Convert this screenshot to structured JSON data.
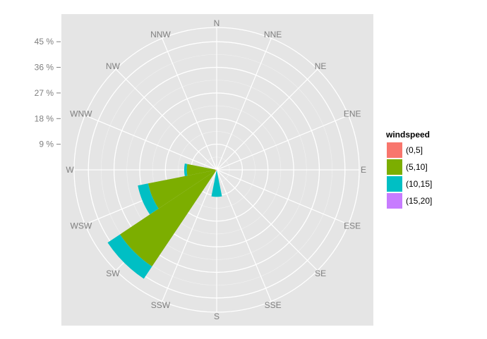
{
  "chart_data": {
    "type": "polar-stacked-bar",
    "coord": "polar",
    "directions": [
      "N",
      "NNE",
      "NE",
      "ENE",
      "E",
      "ESE",
      "SE",
      "SSE",
      "S",
      "SSW",
      "SW",
      "WSW",
      "W",
      "WNW",
      "NW",
      "NNW"
    ],
    "radial_ticks": [
      {
        "value": 9,
        "label": "9 %"
      },
      {
        "value": 18,
        "label": "18 %"
      },
      {
        "value": 27,
        "label": "27 %"
      },
      {
        "value": 36,
        "label": "36 %"
      },
      {
        "value": 45,
        "label": "45 %"
      }
    ],
    "rlim": [
      0,
      50
    ],
    "grid": true,
    "legend": {
      "title": "windspeed",
      "position": "right",
      "entries": [
        {
          "label": "(0,5]",
          "color": "#f8766d"
        },
        {
          "label": "(5,10]",
          "color": "#7cae00"
        },
        {
          "label": "(10,15]",
          "color": "#00bfc4"
        },
        {
          "label": "(15,20]",
          "color": "#c77cff"
        }
      ]
    },
    "series": [
      {
        "name": "(0,5]",
        "values": [
          0,
          0,
          0,
          0,
          0,
          0,
          0,
          0,
          0,
          0,
          0.5,
          0.5,
          0.5,
          0,
          0,
          0
        ]
      },
      {
        "name": "(5,10]",
        "values": [
          0,
          0,
          0,
          0,
          0,
          0,
          0,
          0,
          0,
          0,
          40.3,
          24.0,
          10.0,
          0,
          0,
          0
        ]
      },
      {
        "name": "(10,15]",
        "values": [
          0,
          0,
          0,
          0,
          0,
          0,
          0,
          0,
          9.5,
          0,
          5.2,
          3.7,
          0.9,
          0,
          0,
          0
        ]
      },
      {
        "name": "(15,20]",
        "values": [
          0,
          0,
          0,
          0,
          0,
          0,
          0,
          0,
          0,
          0,
          0,
          0,
          0,
          0,
          0,
          0
        ]
      }
    ]
  }
}
